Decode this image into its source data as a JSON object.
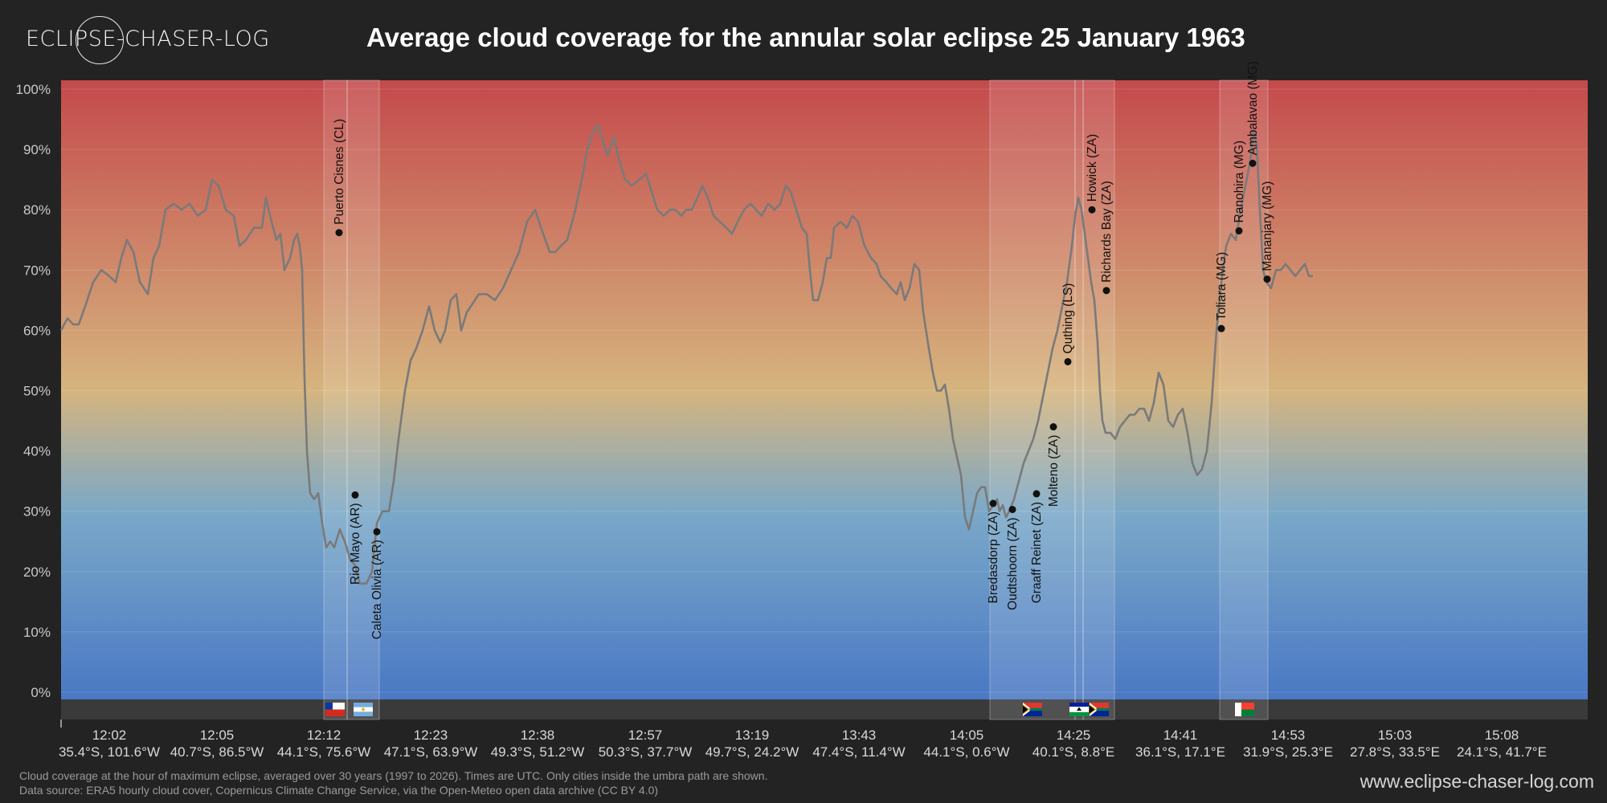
{
  "header": {
    "logo_text": "ECLIPSE-CHASER-LOG",
    "title": "Average cloud coverage for the annular solar eclipse 25 January 1963"
  },
  "footer": {
    "note_line1": "Cloud coverage at the hour of maximum eclipse, averaged over 30 years (1997 to 2026). Times are UTC. Only cities inside the umbra path are shown.",
    "note_line2": "Data source: ERA5 hourly cloud cover, Copernicus Climate Change Service, via the Open-Meteo open data archive (CC BY 4.0)",
    "url": "www.eclipse-chaser-log.com"
  },
  "chart_data": {
    "type": "line",
    "ylim": [
      0,
      100
    ],
    "y_ticks": [
      "0%",
      "10%",
      "20%",
      "30%",
      "40%",
      "50%",
      "60%",
      "70%",
      "80%",
      "90%",
      "100%"
    ],
    "x_range": [
      0,
      1900
    ],
    "x_ticks": [
      {
        "x": 60,
        "time": "12:02",
        "coord": "35.4°S, 101.6°W"
      },
      {
        "x": 194,
        "time": "12:05",
        "coord": "40.7°S, 86.5°W"
      },
      {
        "x": 327,
        "time": "12:12",
        "coord": "44.1°S, 75.6°W"
      },
      {
        "x": 460,
        "time": "12:23",
        "coord": "47.1°S, 63.9°W"
      },
      {
        "x": 593,
        "time": "12:38",
        "coord": "49.3°S, 51.2°W"
      },
      {
        "x": 727,
        "time": "12:57",
        "coord": "50.3°S, 37.7°W"
      },
      {
        "x": 860,
        "time": "13:19",
        "coord": "49.7°S, 24.2°W"
      },
      {
        "x": 993,
        "time": "13:43",
        "coord": "47.4°S, 11.4°W"
      },
      {
        "x": 1127,
        "time": "14:05",
        "coord": "44.1°S, 0.6°W"
      },
      {
        "x": 1260,
        "time": "14:25",
        "coord": "40.1°S, 8.8°E"
      },
      {
        "x": 1393,
        "time": "14:41",
        "coord": "36.1°S, 17.1°E"
      },
      {
        "x": 1527,
        "time": "14:53",
        "coord": "31.9°S, 25.3°E"
      },
      {
        "x": 1660,
        "time": "15:03",
        "coord": "27.8°S, 33.5°E"
      },
      {
        "x": 1793,
        "time": "15:08",
        "coord": "24.1°S, 41.7°E"
      }
    ],
    "series": [
      {
        "points": [
          [
            0,
            60
          ],
          [
            8,
            62
          ],
          [
            15,
            61
          ],
          [
            22,
            61
          ],
          [
            30,
            64
          ],
          [
            40,
            68
          ],
          [
            50,
            70
          ],
          [
            60,
            69
          ],
          [
            68,
            68
          ],
          [
            75,
            72
          ],
          [
            82,
            75
          ],
          [
            90,
            73
          ],
          [
            98,
            68
          ],
          [
            108,
            66
          ],
          [
            115,
            72
          ],
          [
            122,
            74
          ],
          [
            130,
            80
          ],
          [
            140,
            81
          ],
          [
            150,
            80
          ],
          [
            160,
            81
          ],
          [
            170,
            79
          ],
          [
            180,
            80
          ],
          [
            188,
            85
          ],
          [
            196,
            84
          ],
          [
            205,
            80
          ],
          [
            215,
            79
          ],
          [
            222,
            74
          ],
          [
            230,
            75
          ],
          [
            240,
            77
          ],
          [
            250,
            77
          ],
          [
            255,
            82
          ],
          [
            262,
            78
          ],
          [
            268,
            75
          ],
          [
            273,
            76
          ],
          [
            278,
            70
          ],
          [
            285,
            72
          ],
          [
            290,
            75
          ],
          [
            294,
            76
          ],
          [
            297,
            74
          ],
          [
            300,
            70
          ],
          [
            303,
            52
          ],
          [
            306,
            40
          ],
          [
            310,
            33
          ],
          [
            315,
            32
          ],
          [
            320,
            33
          ],
          [
            325,
            28
          ],
          [
            330,
            24
          ],
          [
            335,
            25
          ],
          [
            340,
            24
          ],
          [
            347,
            27
          ],
          [
            353,
            25
          ],
          [
            360,
            22
          ],
          [
            366,
            21
          ],
          [
            372,
            18
          ],
          [
            380,
            18
          ],
          [
            387,
            20
          ],
          [
            393,
            28
          ],
          [
            400,
            30
          ],
          [
            408,
            30
          ],
          [
            414,
            35
          ],
          [
            420,
            42
          ],
          [
            428,
            50
          ],
          [
            435,
            55
          ],
          [
            442,
            57
          ],
          [
            450,
            60
          ],
          [
            458,
            64
          ],
          [
            465,
            60
          ],
          [
            472,
            58
          ],
          [
            478,
            60
          ],
          [
            485,
            65
          ],
          [
            492,
            66
          ],
          [
            498,
            60
          ],
          [
            505,
            63
          ],
          [
            515,
            65
          ],
          [
            520,
            66
          ],
          [
            530,
            66
          ],
          [
            540,
            65
          ],
          [
            550,
            67
          ],
          [
            560,
            70
          ],
          [
            570,
            73
          ],
          [
            580,
            78
          ],
          [
            590,
            80
          ],
          [
            600,
            76
          ],
          [
            608,
            73
          ],
          [
            615,
            73
          ],
          [
            622,
            74
          ],
          [
            630,
            75
          ],
          [
            640,
            80
          ],
          [
            648,
            85
          ],
          [
            655,
            90
          ],
          [
            662,
            93
          ],
          [
            668,
            94
          ],
          [
            673,
            92
          ],
          [
            680,
            89
          ],
          [
            688,
            92
          ],
          [
            695,
            88
          ],
          [
            702,
            85
          ],
          [
            710,
            84
          ],
          [
            720,
            85
          ],
          [
            728,
            86
          ],
          [
            735,
            83
          ],
          [
            742,
            80
          ],
          [
            750,
            79
          ],
          [
            758,
            80
          ],
          [
            765,
            80
          ],
          [
            772,
            79
          ],
          [
            778,
            80
          ],
          [
            785,
            80
          ],
          [
            792,
            82
          ],
          [
            798,
            84
          ],
          [
            805,
            82
          ],
          [
            812,
            79
          ],
          [
            820,
            78
          ],
          [
            828,
            77
          ],
          [
            835,
            76
          ],
          [
            842,
            78
          ],
          [
            850,
            80
          ],
          [
            858,
            81
          ],
          [
            865,
            80
          ],
          [
            872,
            79
          ],
          [
            880,
            81
          ],
          [
            888,
            80
          ],
          [
            895,
            81
          ],
          [
            902,
            84
          ],
          [
            908,
            83
          ],
          [
            915,
            80
          ],
          [
            922,
            77
          ],
          [
            928,
            76
          ],
          [
            932,
            70
          ],
          [
            936,
            65
          ],
          [
            942,
            65
          ],
          [
            948,
            68
          ],
          [
            953,
            72
          ],
          [
            958,
            72
          ],
          [
            962,
            77
          ],
          [
            970,
            78
          ],
          [
            978,
            77
          ],
          [
            985,
            79
          ],
          [
            992,
            78
          ],
          [
            1000,
            74
          ],
          [
            1008,
            72
          ],
          [
            1015,
            71
          ],
          [
            1020,
            69
          ],
          [
            1027,
            68
          ],
          [
            1033,
            67
          ],
          [
            1040,
            66
          ],
          [
            1045,
            68
          ],
          [
            1050,
            65
          ],
          [
            1056,
            67
          ],
          [
            1062,
            71
          ],
          [
            1068,
            70
          ],
          [
            1073,
            63
          ],
          [
            1080,
            57
          ],
          [
            1085,
            53
          ],
          [
            1090,
            50
          ],
          [
            1095,
            50
          ],
          [
            1100,
            51
          ],
          [
            1105,
            47
          ],
          [
            1110,
            42
          ],
          [
            1115,
            39
          ],
          [
            1120,
            36
          ],
          [
            1125,
            29
          ],
          [
            1130,
            27
          ],
          [
            1135,
            30
          ],
          [
            1140,
            33
          ],
          [
            1145,
            34
          ],
          [
            1150,
            34
          ],
          [
            1155,
            30
          ],
          [
            1160,
            31
          ],
          [
            1165,
            32
          ],
          [
            1168,
            30
          ],
          [
            1172,
            31
          ],
          [
            1176,
            29
          ],
          [
            1180,
            30
          ],
          [
            1186,
            32
          ],
          [
            1192,
            35
          ],
          [
            1198,
            38
          ],
          [
            1204,
            40
          ],
          [
            1210,
            42
          ],
          [
            1216,
            45
          ],
          [
            1222,
            49
          ],
          [
            1228,
            53
          ],
          [
            1234,
            57
          ],
          [
            1240,
            60
          ],
          [
            1246,
            64
          ],
          [
            1252,
            68
          ],
          [
            1258,
            74
          ],
          [
            1262,
            79
          ],
          [
            1266,
            82
          ],
          [
            1270,
            80
          ],
          [
            1274,
            76
          ],
          [
            1278,
            72
          ],
          [
            1282,
            68
          ],
          [
            1286,
            65
          ],
          [
            1290,
            58
          ],
          [
            1293,
            50
          ],
          [
            1296,
            45
          ],
          [
            1300,
            43
          ],
          [
            1306,
            43
          ],
          [
            1312,
            42
          ],
          [
            1318,
            44
          ],
          [
            1324,
            45
          ],
          [
            1330,
            46
          ],
          [
            1336,
            46
          ],
          [
            1342,
            47
          ],
          [
            1348,
            47
          ],
          [
            1354,
            45
          ],
          [
            1360,
            48
          ],
          [
            1366,
            53
          ],
          [
            1372,
            51
          ],
          [
            1378,
            45
          ],
          [
            1384,
            44
          ],
          [
            1390,
            46
          ],
          [
            1396,
            47
          ],
          [
            1402,
            43
          ],
          [
            1408,
            38
          ],
          [
            1414,
            36
          ],
          [
            1420,
            37
          ],
          [
            1426,
            40
          ],
          [
            1432,
            48
          ],
          [
            1438,
            60
          ],
          [
            1444,
            68
          ],
          [
            1450,
            74
          ],
          [
            1456,
            76
          ],
          [
            1462,
            75
          ],
          [
            1468,
            80
          ],
          [
            1474,
            84
          ],
          [
            1480,
            88
          ],
          [
            1484,
            93
          ],
          [
            1488,
            91
          ],
          [
            1492,
            80
          ],
          [
            1496,
            70
          ],
          [
            1500,
            68
          ],
          [
            1506,
            67
          ],
          [
            1512,
            70
          ],
          [
            1518,
            70
          ],
          [
            1524,
            71
          ],
          [
            1530,
            70
          ],
          [
            1536,
            69
          ],
          [
            1542,
            70
          ],
          [
            1548,
            71
          ],
          [
            1553,
            69
          ],
          [
            1558,
            69
          ]
        ]
      }
    ],
    "shaded_bands": [
      [
        327,
        356
      ],
      [
        356,
        396
      ],
      [
        1156,
        1262
      ],
      [
        1262,
        1272
      ],
      [
        1272,
        1311
      ],
      [
        1442,
        1502
      ]
    ],
    "cities": [
      {
        "name": "Puerto Cisnes (CL)",
        "x": 346,
        "y": 76.2
      },
      {
        "name": "Rio Mayo (AR)",
        "x": 366,
        "y": 32.7
      },
      {
        "name": "Caleta Olivia (AR)",
        "x": 393,
        "y": 26.6
      },
      {
        "name": "Bredasdorp (ZA)",
        "x": 1160,
        "y": 31.3
      },
      {
        "name": "Oudtshoorn (ZA)",
        "x": 1184,
        "y": 30.3
      },
      {
        "name": "Graaff Reinet (ZA)",
        "x": 1214,
        "y": 32.9
      },
      {
        "name": "Molteno (ZA)",
        "x": 1235,
        "y": 44
      },
      {
        "name": "Quthing (LS)",
        "x": 1253,
        "y": 54.8
      },
      {
        "name": "Howick (ZA)",
        "x": 1283,
        "y": 80
      },
      {
        "name": "Richards Bay (ZA)",
        "x": 1301,
        "y": 66.6
      },
      {
        "name": "Toliara (MG)",
        "x": 1444,
        "y": 60.3
      },
      {
        "name": "Ranohira (MG)",
        "x": 1466,
        "y": 76.5
      },
      {
        "name": "Ambalavao (MG)",
        "x": 1483,
        "y": 87.7
      },
      {
        "name": "Mananjary (MG)",
        "x": 1501,
        "y": 68.5
      }
    ],
    "flags": [
      {
        "country": "CL",
        "x": 341
      },
      {
        "country": "AR",
        "x": 376
      },
      {
        "country": "ZA",
        "x": 1209
      },
      {
        "country": "LS",
        "x": 1267
      },
      {
        "country": "ZA",
        "x": 1292
      },
      {
        "country": "MG",
        "x": 1473
      }
    ],
    "colors": {
      "line": "#7a7a7a",
      "gradient_top": "#c44a4c",
      "gradient_mid": "#d6b47e",
      "gradient_lower": "#7aa8c8",
      "gradient_bottom": "#4a78c4",
      "band_border": "#f0f0f0",
      "marker": "#111111"
    }
  }
}
